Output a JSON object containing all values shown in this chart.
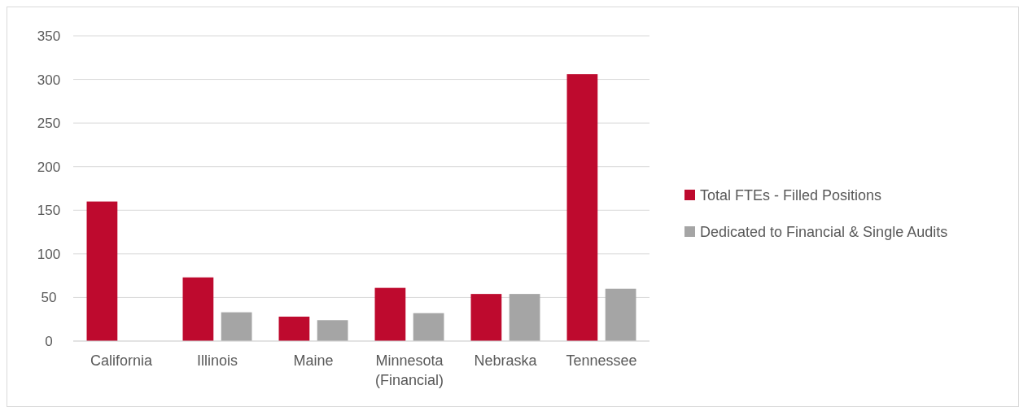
{
  "chart_data": {
    "type": "bar",
    "categories": [
      "California",
      "Illinois",
      "Maine",
      "Minnesota (Financial)",
      "Nebraska",
      "Tennessee"
    ],
    "series": [
      {
        "name": "Total FTEs - Filled Positions",
        "color": "#be0a2e",
        "values": [
          160,
          73,
          28,
          61,
          54,
          306
        ]
      },
      {
        "name": "Dedicated to Financial & Single Audits",
        "color": "#a5a5a5",
        "values": [
          null,
          33,
          24,
          32,
          54,
          60
        ]
      }
    ],
    "ylim": [
      0,
      350
    ],
    "yticks": [
      0,
      50,
      100,
      150,
      200,
      250,
      300,
      350
    ],
    "grid": "y",
    "legend": "right"
  }
}
